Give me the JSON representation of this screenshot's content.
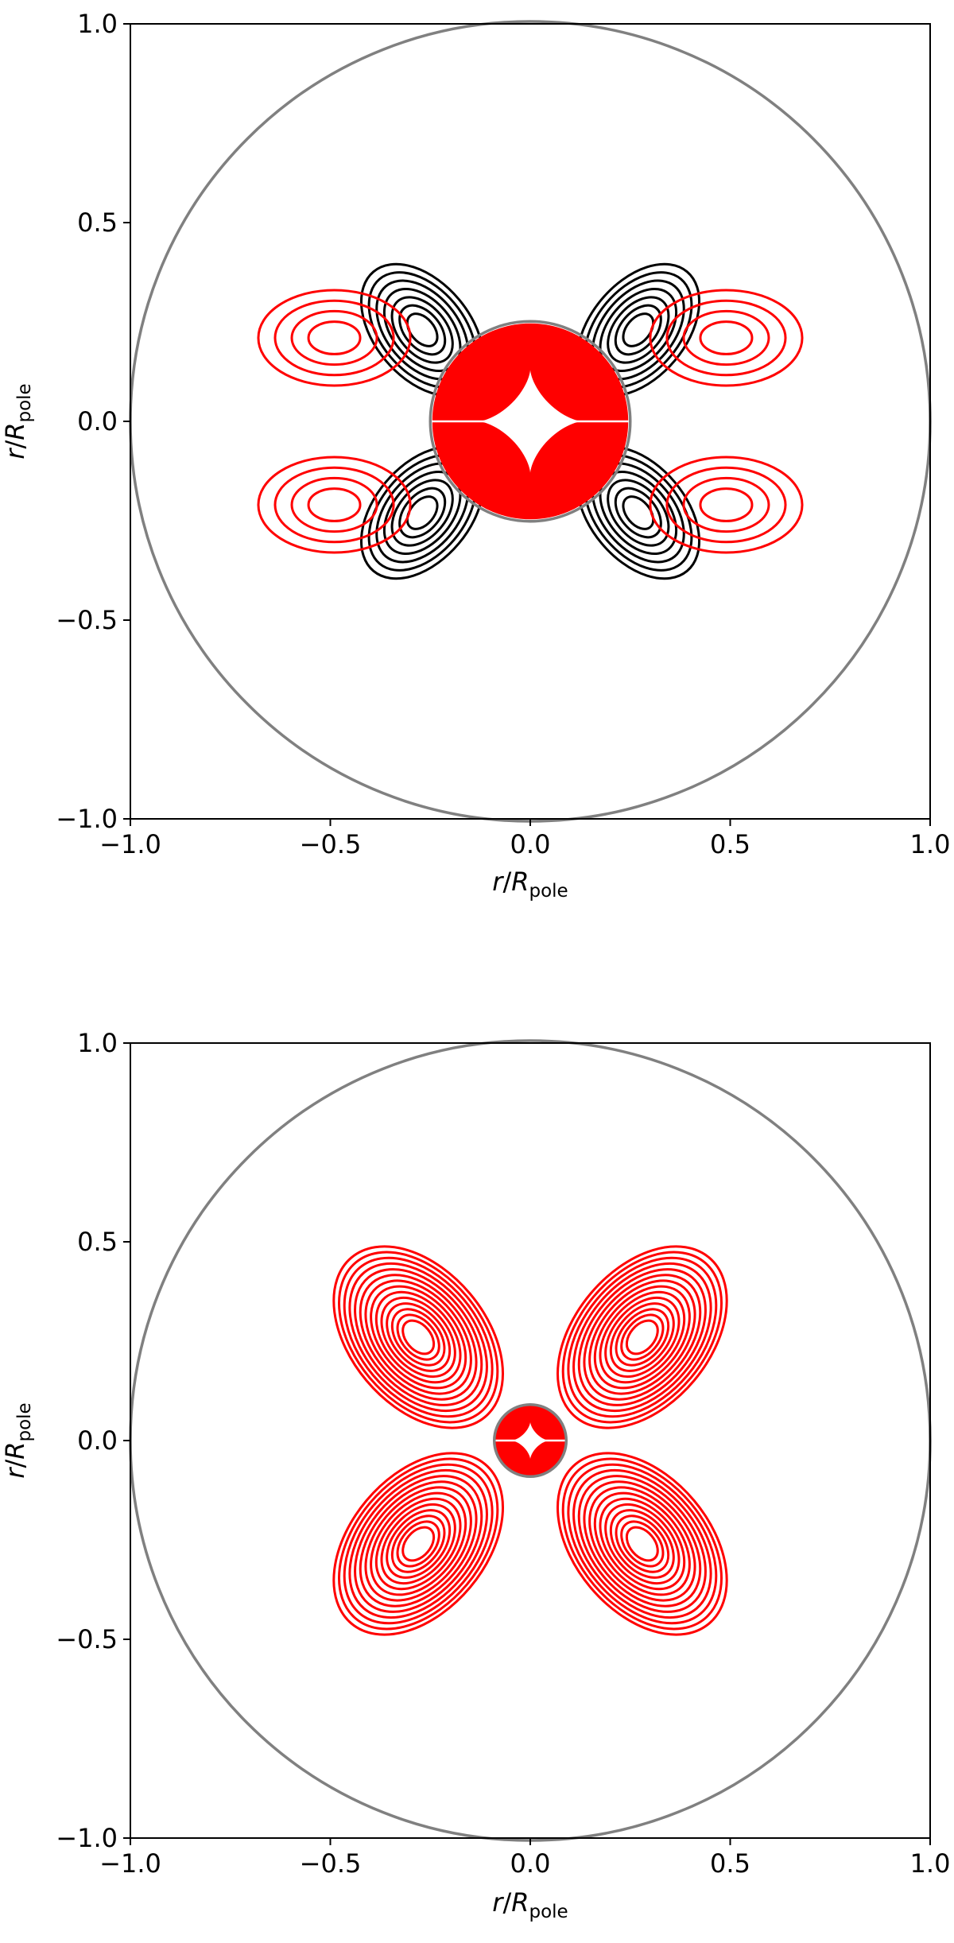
{
  "chart_data": [
    {
      "type": "contour",
      "panel": "top",
      "xlabel": {
        "italic": "r",
        "slash": "/",
        "symbol": "R",
        "subscript": "pole"
      },
      "ylabel": {
        "italic": "r",
        "slash": "/",
        "symbol": "R",
        "subscript": "pole"
      },
      "xlim": [
        -1.0,
        1.0
      ],
      "ylim": [
        -1.0,
        1.0
      ],
      "xticks": [
        {
          "value": -1.0,
          "label": "−1.0"
        },
        {
          "value": -0.5,
          "label": "−0.5"
        },
        {
          "value": 0.0,
          "label": "0.0"
        },
        {
          "value": 0.5,
          "label": "0.5"
        },
        {
          "value": 1.0,
          "label": "1.0"
        }
      ],
      "yticks": [
        {
          "value": -1.0,
          "label": "−1.0"
        },
        {
          "value": -0.5,
          "label": "−0.5"
        },
        {
          "value": 0.0,
          "label": "0.0"
        },
        {
          "value": 0.5,
          "label": "0.5"
        },
        {
          "value": 1.0,
          "label": "1.0"
        }
      ],
      "grid": false,
      "boundaries": {
        "outer_radius": 1.0,
        "inner_radius": 0.25,
        "color": "#808080"
      },
      "colors": {
        "positive": "#ff0000",
        "negative": "#000000"
      },
      "lobes": [
        {
          "sign": "negative",
          "center": [
            0.27,
            0.23
          ],
          "levels": 7
        },
        {
          "sign": "negative",
          "center": [
            -0.27,
            0.23
          ],
          "levels": 7
        },
        {
          "sign": "negative",
          "center": [
            0.27,
            -0.23
          ],
          "levels": 7
        },
        {
          "sign": "negative",
          "center": [
            -0.27,
            -0.23
          ],
          "levels": 7
        },
        {
          "sign": "positive",
          "center": [
            0.49,
            0.21
          ],
          "levels": 4
        },
        {
          "sign": "positive",
          "center": [
            -0.49,
            0.21
          ],
          "levels": 4
        },
        {
          "sign": "positive",
          "center": [
            0.49,
            -0.21
          ],
          "levels": 4
        },
        {
          "sign": "positive",
          "center": [
            -0.49,
            -0.21
          ],
          "levels": 4
        }
      ],
      "core": {
        "sign": "positive",
        "radius": 0.25,
        "dense": true
      }
    },
    {
      "type": "contour",
      "panel": "bottom",
      "xlabel": {
        "italic": "r",
        "slash": "/",
        "symbol": "R",
        "subscript": "pole"
      },
      "ylabel": {
        "italic": "r",
        "slash": "/",
        "symbol": "R",
        "subscript": "pole"
      },
      "xlim": [
        -1.0,
        1.0
      ],
      "ylim": [
        -1.0,
        1.0
      ],
      "xticks": [
        {
          "value": -1.0,
          "label": "−1.0"
        },
        {
          "value": -0.5,
          "label": "−0.5"
        },
        {
          "value": 0.0,
          "label": "0.0"
        },
        {
          "value": 0.5,
          "label": "0.5"
        },
        {
          "value": 1.0,
          "label": "1.0"
        }
      ],
      "yticks": [
        {
          "value": -1.0,
          "label": "−1.0"
        },
        {
          "value": -0.5,
          "label": "−0.5"
        },
        {
          "value": 0.0,
          "label": "0.0"
        },
        {
          "value": 0.5,
          "label": "0.5"
        },
        {
          "value": 1.0,
          "label": "1.0"
        }
      ],
      "grid": false,
      "boundaries": {
        "outer_radius": 1.0,
        "inner_radius": 0.09,
        "color": "#808080"
      },
      "colors": {
        "positive": "#ff0000",
        "negative": "#000000"
      },
      "lobes": [
        {
          "sign": "positive",
          "center": [
            0.28,
            0.26
          ],
          "levels": 14
        },
        {
          "sign": "positive",
          "center": [
            -0.28,
            0.26
          ],
          "levels": 14
        },
        {
          "sign": "positive",
          "center": [
            0.28,
            -0.26
          ],
          "levels": 14
        },
        {
          "sign": "positive",
          "center": [
            -0.28,
            -0.26
          ],
          "levels": 14
        }
      ],
      "core": {
        "sign": "positive",
        "radius": 0.09,
        "dense": true
      }
    }
  ]
}
